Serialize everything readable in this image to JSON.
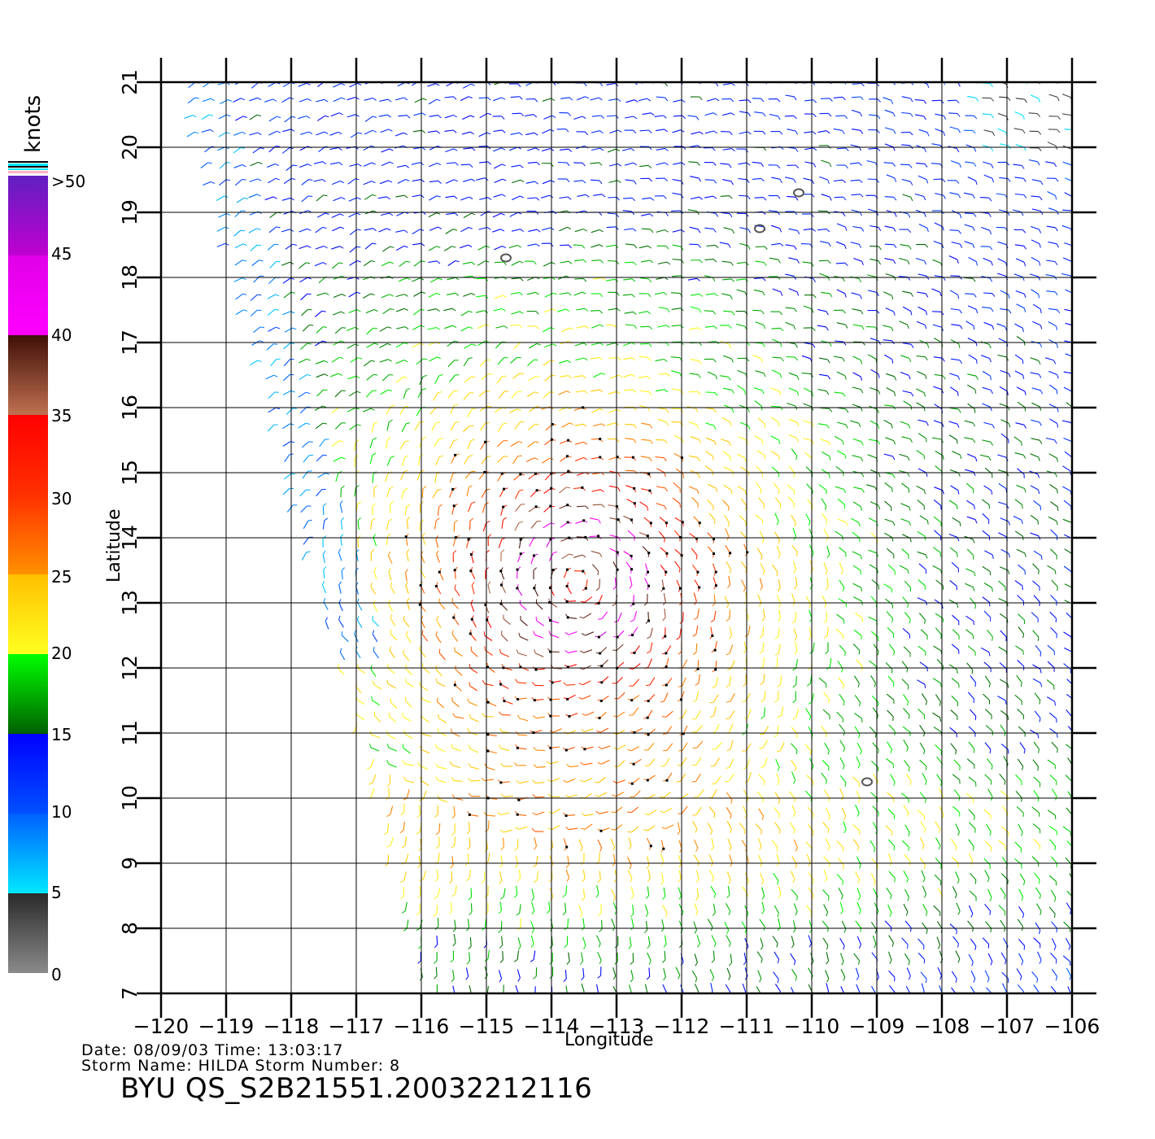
{
  "colorbar": {
    "unit": "knots",
    "tick_labels": [
      ">50",
      "45",
      "40",
      "35",
      "30",
      "25",
      "20",
      "15",
      "10",
      "5",
      "0"
    ],
    "bands": [
      {
        "from": 0,
        "to": 5,
        "colors": [
          "#8a8a8a",
          "#2a2a2a"
        ]
      },
      {
        "from": 5,
        "to": 10,
        "colors": [
          "#00e8ff",
          "#0060ff"
        ]
      },
      {
        "from": 10,
        "to": 15,
        "colors": [
          "#0050ff",
          "#0000ff"
        ]
      },
      {
        "from": 15,
        "to": 20,
        "colors": [
          "#006000",
          "#00ff00"
        ]
      },
      {
        "from": 20,
        "to": 25,
        "colors": [
          "#ffff20",
          "#ffc000"
        ]
      },
      {
        "from": 25,
        "to": 30,
        "colors": [
          "#ff9000",
          "#ff3000"
        ]
      },
      {
        "from": 30,
        "to": 35,
        "colors": [
          "#ff3000",
          "#ff0000"
        ]
      },
      {
        "from": 35,
        "to": 40,
        "colors": [
          "#c07050",
          "#401008"
        ]
      },
      {
        "from": 40,
        "to": 45,
        "colors": [
          "#ff00ff",
          "#e000e8"
        ]
      },
      {
        "from": 45,
        "to": 50,
        "colors": [
          "#c000d0",
          "#6020c0"
        ]
      }
    ]
  },
  "axes": {
    "xlabel": "Longitude",
    "ylabel": "Latitude",
    "xlim": [
      -120,
      -106
    ],
    "ylim": [
      7,
      21
    ],
    "xticks": [
      -120,
      -119,
      -118,
      -117,
      -116,
      -115,
      -114,
      -113,
      -112,
      -111,
      -110,
      -109,
      -108,
      -107,
      -106
    ],
    "xtick_labels": [
      "−120",
      "−119",
      "−118",
      "−117",
      "−116",
      "−115",
      "−114",
      "−113",
      "−112",
      "−111",
      "−110",
      "−109",
      "−108",
      "−107",
      "−106"
    ],
    "yticks": [
      7,
      8,
      9,
      10,
      11,
      12,
      13,
      14,
      15,
      16,
      17,
      18,
      19,
      20,
      21
    ],
    "ytick_labels": [
      "7",
      "8",
      "9",
      "10",
      "11",
      "12",
      "13",
      "14",
      "15",
      "16",
      "17",
      "18",
      "19",
      "20",
      "21"
    ],
    "grid": true
  },
  "storm": {
    "center_lon": -113.6,
    "center_lat": 13.3,
    "max_speed_kt": 45
  },
  "islands": [
    {
      "lon": -110.8,
      "lat": 18.75
    },
    {
      "lon": -110.2,
      "lat": 19.3
    },
    {
      "lon": -114.7,
      "lat": 18.3
    },
    {
      "lon": -109.15,
      "lat": 10.25
    }
  ],
  "info": {
    "date_line": "Date: 08/09/03   Time: 13:03:17",
    "storm_line": "Storm  Name:  HILDA    Storm  Number:  8",
    "product": "BYU  QS_S2B21551.20032212116"
  }
}
